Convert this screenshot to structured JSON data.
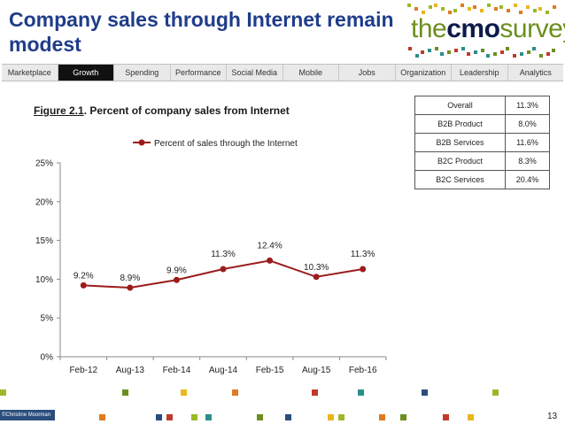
{
  "header": {
    "title": "Company sales through Internet remain modest",
    "logo_text_light": "the",
    "logo_text_bold": "cmo",
    "logo_text_end": "survey"
  },
  "nav": {
    "items": [
      "Marketplace",
      "Growth",
      "Spending",
      "Performance",
      "Social Media",
      "Mobile",
      "Jobs",
      "Organization",
      "Leadership",
      "Analytics"
    ],
    "active_index": 1
  },
  "figure": {
    "number": "Figure 2.1",
    "caption": ".  Percent of company sales from Internet"
  },
  "summary_table": {
    "rows": [
      {
        "label": "Overall",
        "value": "11.3%"
      },
      {
        "label": "B2B Product",
        "value": "8.0%"
      },
      {
        "label": "B2B Services",
        "value": "11.6%"
      },
      {
        "label": "B2C Product",
        "value": "8.3%"
      },
      {
        "label": "B2C Services",
        "value": "20.4%"
      }
    ]
  },
  "chart_data": {
    "type": "line",
    "categories": [
      "Feb-12",
      "Aug-13",
      "Feb-14",
      "Aug-14",
      "Feb-15",
      "Aug-15",
      "Feb-16"
    ],
    "series": [
      {
        "name": "Percent of sales through the Internet",
        "values": [
          9.2,
          8.9,
          9.9,
          11.3,
          12.4,
          10.3,
          11.3
        ],
        "color": "#9b1c1c"
      }
    ],
    "data_labels": [
      "9.2%",
      "8.9%",
      "9.9%",
      "11.3%",
      "12.4%",
      "10.3%",
      "11.3%"
    ],
    "ylim": [
      0,
      25
    ],
    "yticks": [
      0,
      5,
      10,
      15,
      20,
      25
    ],
    "ytick_labels": [
      "0%",
      "5%",
      "10%",
      "15%",
      "20%",
      "25%"
    ],
    "legend_position": "top-center",
    "grid": false
  },
  "footer": {
    "credit": "©Christine Moorman",
    "page_number": "13"
  }
}
